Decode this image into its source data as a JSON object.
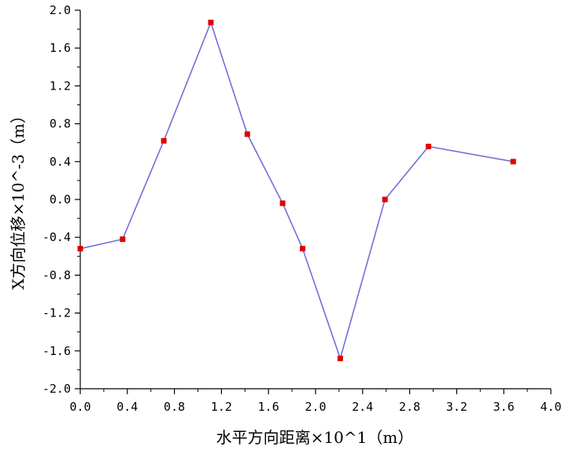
{
  "chart_data": {
    "type": "line",
    "xlabel": "水平方向距离×10^1（m）",
    "ylabel": "X方向位移×10^-3（m）",
    "xlim": [
      0.0,
      4.0
    ],
    "ylim": [
      -2.0,
      2.0
    ],
    "x_ticks": [
      "0.0",
      "0.4",
      "0.8",
      "1.2",
      "1.6",
      "2.0",
      "2.4",
      "2.8",
      "3.2",
      "3.6",
      "4.0"
    ],
    "y_ticks": [
      "2.0",
      "1.6",
      "1.2",
      "0.8",
      "0.4",
      "0.0",
      "-0.4",
      "-0.8",
      "-1.2",
      "-1.6",
      "-2.0"
    ],
    "grid": false,
    "line_color": "#7070d8",
    "marker_color": "#e00000",
    "series": [
      {
        "x": [
          0.0,
          0.36,
          0.71,
          1.11,
          1.42,
          1.72,
          1.89,
          2.21,
          2.59,
          2.96,
          3.68
        ],
        "y": [
          -0.52,
          -0.42,
          0.62,
          1.87,
          0.69,
          -0.04,
          -0.52,
          -1.68,
          0.0,
          0.56,
          0.4
        ]
      }
    ]
  }
}
